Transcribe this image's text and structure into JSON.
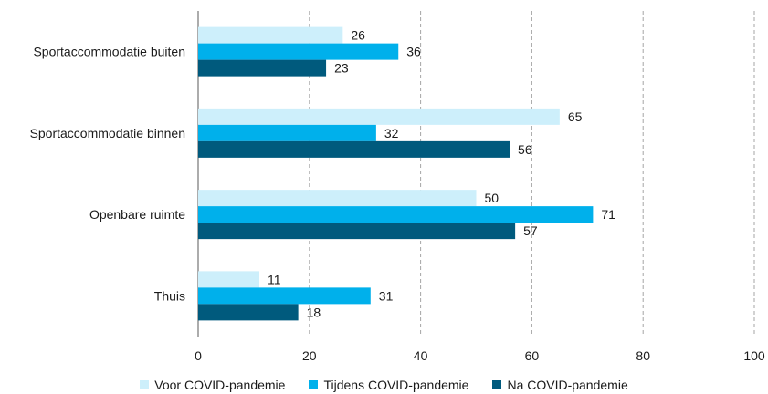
{
  "chart_data": {
    "type": "bar",
    "orientation": "horizontal",
    "categories": [
      "Sportaccommodatie buiten",
      "Sportaccommodatie binnen",
      "Openbare ruimte",
      "Thuis"
    ],
    "series": [
      {
        "name": "Voor COVID-pandemie",
        "color": "#CDEFFB",
        "values": [
          26,
          65,
          50,
          11
        ]
      },
      {
        "name": "Tijdens COVID-pandemie",
        "color": "#00B0EB",
        "values": [
          36,
          32,
          71,
          31
        ]
      },
      {
        "name": "Na COVID-pandemie",
        "color": "#005A7D",
        "values": [
          23,
          56,
          57,
          18
        ]
      }
    ],
    "xlim": [
      0,
      100
    ],
    "xticks": [
      0,
      20,
      40,
      60,
      80,
      100
    ],
    "grid": "vertical dashed",
    "legend": "bottom"
  }
}
